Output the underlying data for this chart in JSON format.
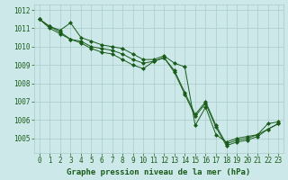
{
  "title": "Graphe pression niveau de la mer (hPa)",
  "background_color": "#cce8e8",
  "grid_color": "#aacccc",
  "line_color": "#1a5c1a",
  "xlim": [
    -0.5,
    23.5
  ],
  "ylim": [
    1004.2,
    1012.3
  ],
  "yticks": [
    1005,
    1006,
    1007,
    1008,
    1009,
    1010,
    1011,
    1012
  ],
  "xticks": [
    0,
    1,
    2,
    3,
    4,
    5,
    6,
    7,
    8,
    9,
    10,
    11,
    12,
    13,
    14,
    15,
    16,
    17,
    18,
    19,
    20,
    21,
    22,
    23
  ],
  "series1": [
    1011.5,
    1011.1,
    1010.9,
    1011.3,
    1010.5,
    1010.3,
    1010.1,
    1010.0,
    1009.9,
    1009.6,
    1009.3,
    1009.3,
    1009.5,
    1009.1,
    1008.9,
    1005.7,
    1006.7,
    1005.2,
    1004.8,
    1005.0,
    1005.1,
    1005.2,
    1005.8,
    1005.9
  ],
  "series2": [
    1011.5,
    1011.1,
    1010.8,
    1010.4,
    1010.3,
    1010.0,
    1009.9,
    1009.8,
    1009.6,
    1009.3,
    1009.1,
    1009.2,
    1009.4,
    1008.7,
    1007.5,
    1006.3,
    1007.0,
    1005.7,
    1004.7,
    1004.9,
    1005.0,
    1005.2,
    1005.5,
    1005.8
  ],
  "series3": [
    1011.5,
    1011.0,
    1010.7,
    1010.4,
    1010.2,
    1009.9,
    1009.7,
    1009.6,
    1009.3,
    1009.0,
    1008.8,
    1009.2,
    1009.4,
    1008.6,
    1007.4,
    1006.2,
    1006.9,
    1005.6,
    1004.6,
    1004.8,
    1004.9,
    1005.1,
    1005.5,
    1005.8
  ]
}
